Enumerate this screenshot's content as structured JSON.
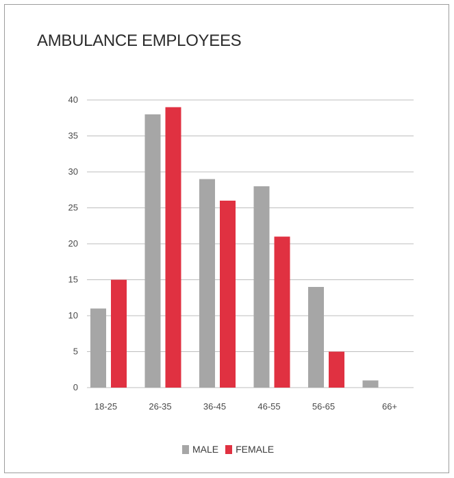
{
  "chart_data": {
    "type": "bar",
    "title": "AMBULANCE EMPLOYEES",
    "xlabel": "",
    "ylabel": "",
    "categories": [
      "18-25",
      "26-35",
      "36-45",
      "46-55",
      "56-65",
      "66+"
    ],
    "series": [
      {
        "name": "MALE",
        "color": "#a6a6a6",
        "values": [
          11,
          38,
          29,
          28,
          14,
          1
        ]
      },
      {
        "name": "FEMALE",
        "color": "#e03141",
        "values": [
          15,
          39,
          26,
          21,
          5,
          0
        ]
      }
    ],
    "ylim": [
      0,
      40
    ],
    "yticks": [
      0,
      5,
      10,
      15,
      20,
      25,
      30,
      35,
      40
    ],
    "grid": true,
    "legend_position": "bottom-center"
  }
}
